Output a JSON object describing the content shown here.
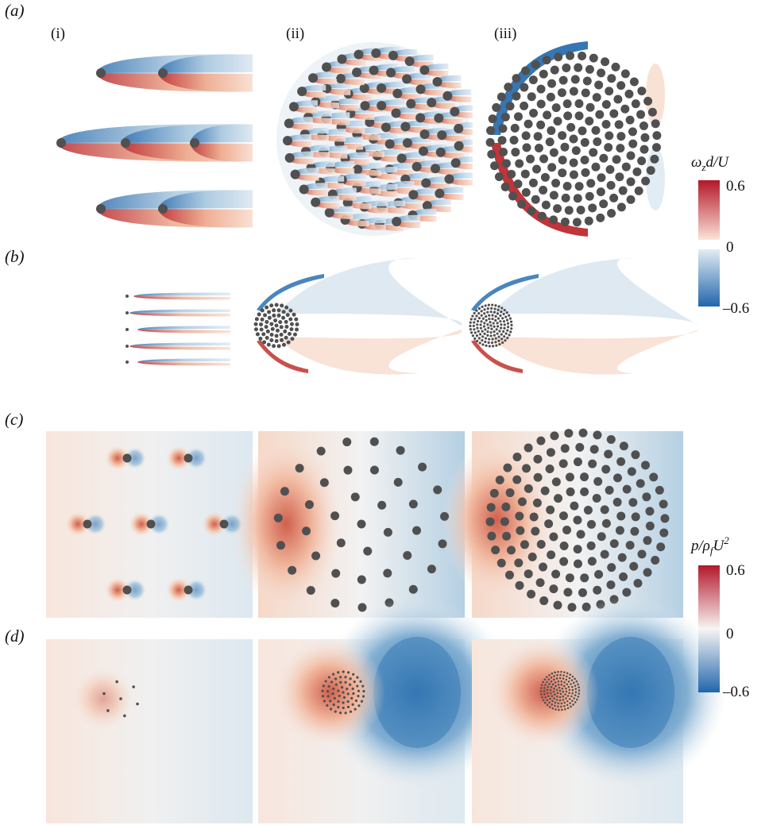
{
  "panels": [
    {
      "label": "(a)"
    },
    {
      "label": "(b)"
    },
    {
      "label": "(c)"
    },
    {
      "label": "(d)"
    }
  ],
  "columns": [
    "(i)",
    "(ii)",
    "(iii)"
  ],
  "colorbars": [
    {
      "title": {
        "symbol": "ω",
        "sub": "z",
        "rest": "d/U"
      },
      "ticks": [
        "0.6",
        "0",
        "–0.6"
      ]
    },
    {
      "title": {
        "symbol": "p/ρ",
        "sub": "f",
        "rest": "U",
        "sup": "2"
      },
      "ticks": [
        "0.6",
        "0",
        "–0.6"
      ]
    }
  ]
}
